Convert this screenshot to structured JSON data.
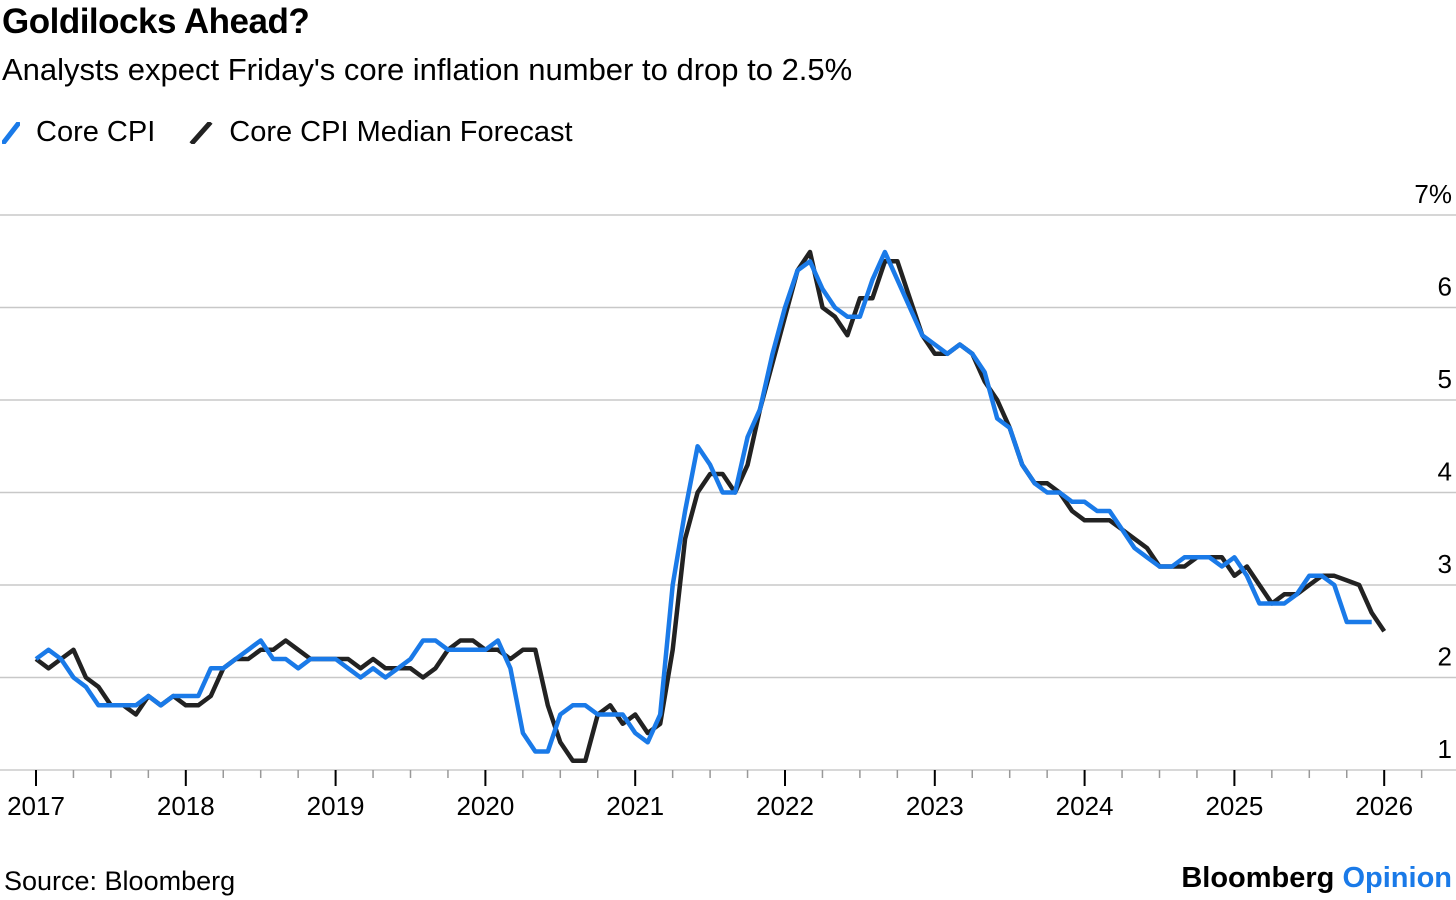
{
  "header": {
    "title": "Goldilocks Ahead?",
    "subtitle": "Analysts expect Friday's core inflation number to drop to 2.5%"
  },
  "legend": [
    {
      "label": "Core CPI",
      "color": "#1a7ae8"
    },
    {
      "label": "Core CPI Median Forecast",
      "color": "#222222"
    }
  ],
  "footer": {
    "source": "Source: Bloomberg",
    "brand_main": "Bloomberg",
    "brand_accent": "Opinion"
  },
  "colors": {
    "accent": "#1a7ae8",
    "forecast": "#222222",
    "grid": "#c8c8c8"
  },
  "chart_data": {
    "type": "line",
    "title": "Goldilocks Ahead?",
    "subtitle": "Analysts expect Friday's core inflation number to drop to 2.5%",
    "xlabel": "",
    "ylabel": "",
    "x_tick_labels": [
      "2017",
      "2018",
      "2019",
      "2020",
      "2021",
      "2022",
      "2023",
      "2024",
      "2025",
      "2026"
    ],
    "y_ticks": [
      1,
      2,
      3,
      4,
      5,
      6,
      7
    ],
    "y_tick_labels": [
      "1",
      "2",
      "3",
      "4",
      "5",
      "6",
      "7%"
    ],
    "ylim": [
      1,
      7
    ],
    "xlim": [
      "2017-01",
      "2026-02"
    ],
    "grid": "horizontal",
    "legend_position": "top-left",
    "series": [
      {
        "name": "Core CPI",
        "color": "#1a7ae8",
        "x": [
          "2017-01",
          "2017-02",
          "2017-03",
          "2017-04",
          "2017-05",
          "2017-06",
          "2017-07",
          "2017-08",
          "2017-09",
          "2017-10",
          "2017-11",
          "2017-12",
          "2018-01",
          "2018-02",
          "2018-03",
          "2018-04",
          "2018-05",
          "2018-06",
          "2018-07",
          "2018-08",
          "2018-09",
          "2018-10",
          "2018-11",
          "2018-12",
          "2019-01",
          "2019-02",
          "2019-03",
          "2019-04",
          "2019-05",
          "2019-06",
          "2019-07",
          "2019-08",
          "2019-09",
          "2019-10",
          "2019-11",
          "2019-12",
          "2020-01",
          "2020-02",
          "2020-03",
          "2020-04",
          "2020-05",
          "2020-06",
          "2020-07",
          "2020-08",
          "2020-09",
          "2020-10",
          "2020-11",
          "2020-12",
          "2021-01",
          "2021-02",
          "2021-03",
          "2021-04",
          "2021-05",
          "2021-06",
          "2021-07",
          "2021-08",
          "2021-09",
          "2021-10",
          "2021-11",
          "2021-12",
          "2022-01",
          "2022-02",
          "2022-03",
          "2022-04",
          "2022-05",
          "2022-06",
          "2022-07",
          "2022-08",
          "2022-09",
          "2022-10",
          "2022-11",
          "2022-12",
          "2023-01",
          "2023-02",
          "2023-03",
          "2023-04",
          "2023-05",
          "2023-06",
          "2023-07",
          "2023-08",
          "2023-09",
          "2023-10",
          "2023-11",
          "2023-12",
          "2024-01",
          "2024-02",
          "2024-03",
          "2024-04",
          "2024-05",
          "2024-06",
          "2024-07",
          "2024-08",
          "2024-09",
          "2024-10",
          "2024-11",
          "2024-12",
          "2025-01",
          "2025-02",
          "2025-03",
          "2025-04",
          "2025-05",
          "2025-06",
          "2025-07",
          "2025-08",
          "2025-09",
          "2025-10",
          "2025-11",
          "2025-12"
        ],
        "values": [
          2.2,
          2.3,
          2.2,
          2.0,
          1.9,
          1.7,
          1.7,
          1.7,
          1.7,
          1.8,
          1.7,
          1.8,
          1.8,
          1.8,
          2.1,
          2.1,
          2.2,
          2.3,
          2.4,
          2.2,
          2.2,
          2.1,
          2.2,
          2.2,
          2.2,
          2.1,
          2.0,
          2.1,
          2.0,
          2.1,
          2.2,
          2.4,
          2.4,
          2.3,
          2.3,
          2.3,
          2.3,
          2.4,
          2.1,
          1.4,
          1.2,
          1.2,
          1.6,
          1.7,
          1.7,
          1.6,
          1.6,
          1.6,
          1.4,
          1.3,
          1.6,
          3.0,
          3.8,
          4.5,
          4.3,
          4.0,
          4.0,
          4.6,
          4.9,
          5.5,
          6.0,
          6.4,
          6.5,
          6.2,
          6.0,
          5.9,
          5.9,
          6.3,
          6.6,
          6.3,
          6.0,
          5.7,
          5.6,
          5.5,
          5.6,
          5.5,
          5.3,
          4.8,
          4.7,
          4.3,
          4.1,
          4.0,
          4.0,
          3.9,
          3.9,
          3.8,
          3.8,
          3.6,
          3.4,
          3.3,
          3.2,
          3.2,
          3.3,
          3.3,
          3.3,
          3.2,
          3.3,
          3.1,
          2.8,
          2.8,
          2.8,
          2.9,
          3.1,
          3.1,
          3.0,
          2.6,
          2.6,
          2.6
        ]
      },
      {
        "name": "Core CPI Median Forecast",
        "color": "#222222",
        "x": [
          "2017-01",
          "2017-02",
          "2017-03",
          "2017-04",
          "2017-05",
          "2017-06",
          "2017-07",
          "2017-08",
          "2017-09",
          "2017-10",
          "2017-11",
          "2017-12",
          "2018-01",
          "2018-02",
          "2018-03",
          "2018-04",
          "2018-05",
          "2018-06",
          "2018-07",
          "2018-08",
          "2018-09",
          "2018-10",
          "2018-11",
          "2018-12",
          "2019-01",
          "2019-02",
          "2019-03",
          "2019-04",
          "2019-05",
          "2019-06",
          "2019-07",
          "2019-08",
          "2019-09",
          "2019-10",
          "2019-11",
          "2019-12",
          "2020-01",
          "2020-02",
          "2020-03",
          "2020-04",
          "2020-05",
          "2020-06",
          "2020-07",
          "2020-08",
          "2020-09",
          "2020-10",
          "2020-11",
          "2020-12",
          "2021-01",
          "2021-02",
          "2021-03",
          "2021-04",
          "2021-05",
          "2021-06",
          "2021-07",
          "2021-08",
          "2021-09",
          "2021-10",
          "2021-11",
          "2021-12",
          "2022-01",
          "2022-02",
          "2022-03",
          "2022-04",
          "2022-05",
          "2022-06",
          "2022-07",
          "2022-08",
          "2022-09",
          "2022-10",
          "2022-11",
          "2022-12",
          "2023-01",
          "2023-02",
          "2023-03",
          "2023-04",
          "2023-05",
          "2023-06",
          "2023-07",
          "2023-08",
          "2023-09",
          "2023-10",
          "2023-11",
          "2023-12",
          "2024-01",
          "2024-02",
          "2024-03",
          "2024-04",
          "2024-05",
          "2024-06",
          "2024-07",
          "2024-08",
          "2024-09",
          "2024-10",
          "2024-11",
          "2024-12",
          "2025-01",
          "2025-02",
          "2025-03",
          "2025-04",
          "2025-05",
          "2025-06",
          "2025-07",
          "2025-08",
          "2025-09",
          "2025-10",
          "2025-11",
          "2025-12",
          "2026-01"
        ],
        "values": [
          2.2,
          2.1,
          2.2,
          2.3,
          2.0,
          1.9,
          1.7,
          1.7,
          1.6,
          1.8,
          1.7,
          1.8,
          1.7,
          1.7,
          1.8,
          2.1,
          2.2,
          2.2,
          2.3,
          2.3,
          2.4,
          2.3,
          2.2,
          2.2,
          2.2,
          2.2,
          2.1,
          2.2,
          2.1,
          2.1,
          2.1,
          2.0,
          2.1,
          2.3,
          2.4,
          2.4,
          2.3,
          2.3,
          2.2,
          2.3,
          2.3,
          1.7,
          1.3,
          1.1,
          1.1,
          1.6,
          1.7,
          1.5,
          1.6,
          1.4,
          1.5,
          2.3,
          3.5,
          4.0,
          4.2,
          4.2,
          4.0,
          4.3,
          4.9,
          5.4,
          5.9,
          6.4,
          6.6,
          6.0,
          5.9,
          5.7,
          6.1,
          6.1,
          6.5,
          6.5,
          6.1,
          5.7,
          5.5,
          5.5,
          5.6,
          5.5,
          5.2,
          5.0,
          4.7,
          4.3,
          4.1,
          4.1,
          4.0,
          3.8,
          3.7,
          3.7,
          3.7,
          3.6,
          3.5,
          3.4,
          3.2,
          3.2,
          3.2,
          3.3,
          3.3,
          3.3,
          3.1,
          3.2,
          3.0,
          2.8,
          2.9,
          2.9,
          3.0,
          3.1,
          3.1,
          3.05,
          3.0,
          2.7,
          2.5
        ]
      }
    ]
  }
}
